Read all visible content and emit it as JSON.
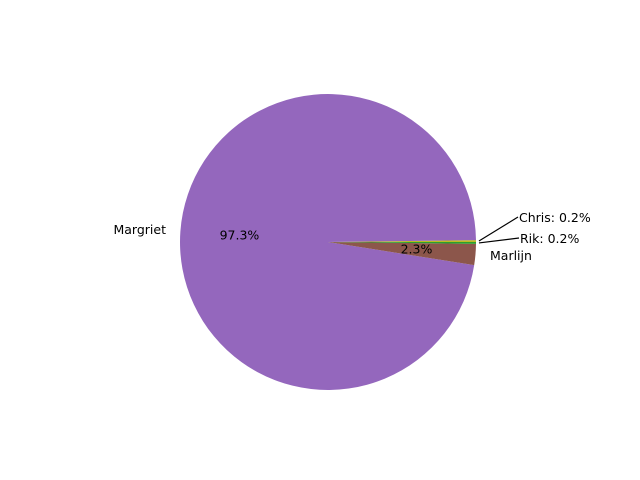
{
  "chart_data": {
    "type": "pie",
    "start_angle_deg": 0,
    "direction": "counterclockwise",
    "slices": [
      {
        "label": "Chris",
        "value": 0.2,
        "color": "#bcbd22",
        "pct_text": "",
        "outer_text": "Chris: 0.2%"
      },
      {
        "label": "Margriet",
        "value": 97.3,
        "color": "#9467bd",
        "pct_text": "97.3%",
        "outer_text": "Margriet"
      },
      {
        "label": "Marlijn",
        "value": 2.3,
        "color": "#8c564b",
        "pct_text": "2.3%",
        "outer_text": "Marlijn"
      },
      {
        "label": "Rik",
        "value": 0.2,
        "color": "#2ca02c",
        "pct_text": "",
        "outer_text": "Rik: 0.2%"
      }
    ]
  }
}
